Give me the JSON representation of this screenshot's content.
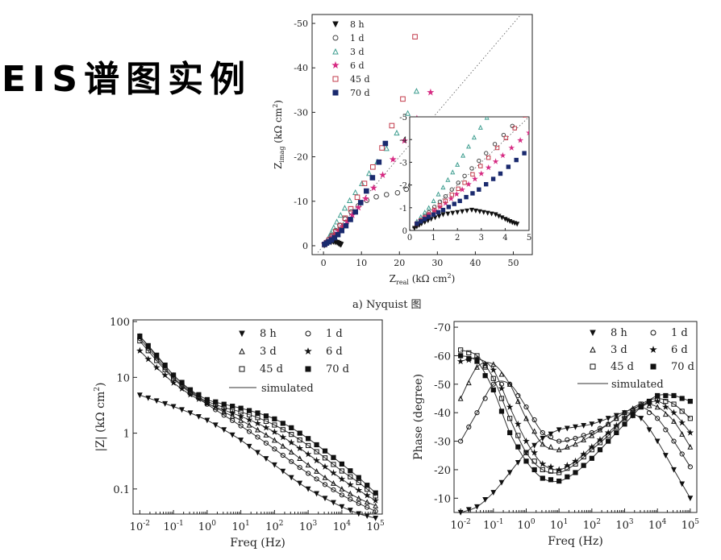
{
  "title": "EIS谱图实例",
  "caption": "a) Nyquist 图",
  "chart_data": [
    {
      "type": "scatter",
      "name": "nyquist",
      "xlabel_main": "Z",
      "xlabel_sub": "real",
      "xlabel_unit": "(kΩ cm",
      "ylabel_main": "Z",
      "ylabel_sub": "imag",
      "ylabel_unit": "(kΩ cm",
      "unit_sup": "2",
      "unit_close": ")",
      "xlim": [
        -3,
        55
      ],
      "ylim": [
        2,
        -52
      ],
      "xticks": [
        "0",
        "10",
        "20",
        "30",
        "40",
        "50"
      ],
      "yticks": [
        "0",
        "-10",
        "-20",
        "-30",
        "-40",
        "-50"
      ],
      "grid": false,
      "legend": "top-left",
      "series": [
        {
          "name": "8 h",
          "marker": "triangle-down-filled",
          "color": "#111111",
          "x": [
            0.2,
            0.5,
            0.9,
            1.4,
            2.0,
            2.6,
            3.1,
            3.6,
            4.0,
            4.3,
            4.6
          ],
          "y": [
            -0.1,
            -0.3,
            -0.5,
            -0.7,
            -0.8,
            -0.9,
            -0.8,
            -0.7,
            -0.5,
            -0.35,
            -0.25
          ]
        },
        {
          "name": "1 d",
          "marker": "circle-open",
          "color": "#444444",
          "x": [
            0.3,
            0.8,
            1.5,
            2.3,
            3.2,
            4.3,
            5.7,
            7.3,
            9.2,
            11.4,
            13.9,
            16.6,
            19.5,
            21.8,
            23.0
          ],
          "y": [
            -0.3,
            -0.8,
            -1.5,
            -2.4,
            -3.4,
            -4.6,
            -6.0,
            -7.6,
            -9.0,
            -10.2,
            -11.0,
            -11.5,
            -11.9,
            -12.7,
            -13.6
          ]
        },
        {
          "name": "3 d",
          "marker": "triangle-open",
          "color": "#3f9e90",
          "x": [
            0.3,
            0.8,
            1.4,
            2.0,
            2.7,
            3.5,
            4.5,
            5.6,
            6.9,
            8.4,
            10.1,
            12.0,
            14.2,
            16.6,
            19.3,
            22.2,
            24.5
          ],
          "y": [
            -0.4,
            -1.0,
            -1.9,
            -2.9,
            -4.1,
            -5.4,
            -6.9,
            -8.5,
            -10.2,
            -12.0,
            -14.0,
            -16.3,
            -18.9,
            -21.9,
            -25.4,
            -29.8,
            -34.8
          ]
        },
        {
          "name": "6 d",
          "marker": "star-filled",
          "color": "#d62a82",
          "x": [
            0.3,
            0.8,
            1.5,
            2.2,
            3.0,
            3.9,
            5.0,
            6.2,
            7.6,
            9.2,
            11.1,
            13.2,
            15.6,
            18.3,
            21.3,
            24.6,
            28.2
          ],
          "y": [
            -0.3,
            -0.7,
            -1.2,
            -1.8,
            -2.5,
            -3.3,
            -4.3,
            -5.5,
            -6.9,
            -8.6,
            -10.6,
            -13.0,
            -15.9,
            -19.4,
            -23.6,
            -28.6,
            -34.5
          ]
        },
        {
          "name": "45 d",
          "marker": "square-open",
          "color": "#c23a4a",
          "x": [
            0.3,
            0.8,
            1.5,
            2.3,
            3.3,
            4.4,
            5.7,
            7.2,
            8.9,
            10.8,
            13.0,
            15.4,
            18.0,
            20.9,
            24.1
          ],
          "y": [
            -0.3,
            -0.7,
            -1.3,
            -2.1,
            -3.2,
            -4.5,
            -6.2,
            -8.3,
            -10.9,
            -14.0,
            -17.7,
            -22.0,
            -27.0,
            -33.0,
            -47.0
          ]
        },
        {
          "name": "70 d",
          "marker": "square-filled",
          "color": "#1a2a6e",
          "x": [
            0.3,
            0.8,
            1.4,
            2.1,
            2.9,
            3.8,
            4.8,
            5.9,
            7.1,
            8.4,
            9.8,
            11.3,
            12.9,
            14.6,
            16.3
          ],
          "y": [
            -0.3,
            -0.6,
            -0.9,
            -1.3,
            -1.8,
            -2.5,
            -3.4,
            -4.5,
            -5.9,
            -7.6,
            -9.7,
            -12.3,
            -15.3,
            -18.8,
            -23.0
          ]
        }
      ],
      "inset": {
        "xlim": [
          0,
          5
        ],
        "ylim": [
          0,
          -5
        ],
        "xticks": [
          "0",
          "1",
          "2",
          "3",
          "4",
          "5"
        ],
        "yticks": [
          "0",
          "-1",
          "-2",
          "-3",
          "-4",
          "-5"
        ]
      }
    },
    {
      "type": "line",
      "name": "bode-magnitude",
      "xlabel": "Freq (Hz)",
      "ylabel_main": "|Z| (kΩ cm",
      "ylabel_sup": "2",
      "ylabel_close": ")",
      "xscale": "log",
      "yscale": "log",
      "xticks": [
        "10",
        "10",
        "10",
        "10",
        "10",
        "10",
        "10",
        "10"
      ],
      "xtick_exps": [
        "-2",
        "-1",
        "0",
        "1",
        "2",
        "3",
        "4",
        "5"
      ],
      "yticks": [
        "100",
        "10",
        "1",
        "0.1"
      ],
      "grid": false,
      "legend": "top-right",
      "simulated_label": "simulated",
      "series": [
        {
          "name": "8 h",
          "marker": "triangle-down-filled",
          "x": [
            0.01,
            0.0316,
            0.1,
            0.316,
            1,
            3.16,
            10,
            31.6,
            100,
            316,
            1000,
            3162,
            10000,
            31623,
            100000
          ],
          "y": [
            4.8,
            3.8,
            3.0,
            2.3,
            1.7,
            1.15,
            0.75,
            0.45,
            0.27,
            0.16,
            0.1,
            0.068,
            0.048,
            0.036,
            0.03
          ]
        },
        {
          "name": "1 d",
          "marker": "circle-open",
          "x": [
            0.01,
            0.0316,
            0.1,
            0.316,
            1,
            3.16,
            10,
            31.6,
            100,
            316,
            1000,
            3162,
            10000,
            31623,
            100000
          ],
          "y": [
            50,
            22,
            10,
            5.5,
            3.3,
            2.1,
            1.35,
            0.85,
            0.52,
            0.31,
            0.19,
            0.12,
            0.078,
            0.055,
            0.04
          ]
        },
        {
          "name": "3 d",
          "marker": "triangle-open",
          "x": [
            0.01,
            0.0316,
            0.1,
            0.316,
            1,
            3.16,
            10,
            31.6,
            100,
            316,
            1000,
            3162,
            10000,
            31623,
            100000
          ],
          "y": [
            55,
            24,
            11,
            5.8,
            3.5,
            2.4,
            1.7,
            1.15,
            0.75,
            0.46,
            0.27,
            0.16,
            0.1,
            0.068,
            0.05
          ]
        },
        {
          "name": "6 d",
          "marker": "star-filled",
          "x": [
            0.01,
            0.0316,
            0.1,
            0.316,
            1,
            3.16,
            10,
            31.6,
            100,
            316,
            1000,
            3162,
            10000,
            31623,
            100000
          ],
          "y": [
            30,
            15,
            8.0,
            4.9,
            3.4,
            2.6,
            2.0,
            1.5,
            1.05,
            0.68,
            0.42,
            0.25,
            0.15,
            0.095,
            0.062
          ]
        },
        {
          "name": "45 d",
          "marker": "square-open",
          "x": [
            0.01,
            0.0316,
            0.1,
            0.316,
            1,
            3.16,
            10,
            31.6,
            100,
            316,
            1000,
            3162,
            10000,
            31623,
            100000
          ],
          "y": [
            45,
            20,
            9.5,
            5.3,
            3.7,
            2.9,
            2.4,
            1.9,
            1.4,
            0.95,
            0.6,
            0.36,
            0.21,
            0.13,
            0.075
          ]
        },
        {
          "name": "70 d",
          "marker": "square-filled",
          "x": [
            0.01,
            0.0316,
            0.1,
            0.316,
            1,
            3.16,
            10,
            31.6,
            100,
            316,
            1000,
            3162,
            10000,
            31623,
            100000
          ],
          "y": [
            55,
            25,
            11,
            6.0,
            4.0,
            3.3,
            2.8,
            2.3,
            1.8,
            1.25,
            0.8,
            0.48,
            0.28,
            0.16,
            0.085
          ]
        }
      ]
    },
    {
      "type": "line",
      "name": "bode-phase",
      "xlabel": "Freq (Hz)",
      "ylabel": "Phase (degree)",
      "xscale": "log",
      "xticks": [
        "10",
        "10",
        "10",
        "10",
        "10",
        "10",
        "10",
        "10"
      ],
      "xtick_exps": [
        "-2",
        "-1",
        "0",
        "1",
        "2",
        "3",
        "4",
        "5"
      ],
      "yticks": [
        "-10",
        "-20",
        "-30",
        "-40",
        "-50",
        "-60",
        "-70"
      ],
      "ylim": [
        -5,
        -72
      ],
      "grid": false,
      "legend": "top-right",
      "simulated_label": "simulated",
      "series": [
        {
          "name": "8 h",
          "marker": "triangle-down-filled",
          "x": [
            0.01,
            0.0316,
            0.1,
            0.316,
            1,
            3.16,
            10,
            31.6,
            100,
            316,
            1000,
            3162,
            10000,
            31623,
            100000
          ],
          "y": [
            -5,
            -7,
            -12,
            -19,
            -26,
            -31,
            -34,
            -35,
            -36,
            -38,
            -40,
            -38,
            -30,
            -20,
            -10
          ]
        },
        {
          "name": "1 d",
          "marker": "circle-open",
          "x": [
            0.01,
            0.0316,
            0.1,
            0.316,
            1,
            3.16,
            10,
            31.6,
            100,
            316,
            1000,
            3162,
            10000,
            31623,
            100000
          ],
          "y": [
            -30,
            -40,
            -50,
            -50,
            -42,
            -33,
            -30,
            -31,
            -33,
            -36,
            -40,
            -42,
            -38,
            -30,
            -21
          ]
        },
        {
          "name": "3 d",
          "marker": "triangle-open",
          "x": [
            0.01,
            0.0316,
            0.1,
            0.316,
            1,
            3.16,
            10,
            31.6,
            100,
            316,
            1000,
            3162,
            10000,
            31623,
            100000
          ],
          "y": [
            -45,
            -56,
            -57,
            -50,
            -38,
            -29,
            -27,
            -29,
            -32,
            -36,
            -40,
            -43,
            -42,
            -37,
            -28
          ]
        },
        {
          "name": "6 d",
          "marker": "star-filled",
          "x": [
            0.01,
            0.0316,
            0.1,
            0.316,
            1,
            3.16,
            10,
            31.6,
            100,
            316,
            1000,
            3162,
            10000,
            31623,
            100000
          ],
          "y": [
            -58,
            -59,
            -55,
            -42,
            -30,
            -22,
            -20,
            -23,
            -28,
            -33,
            -38,
            -42,
            -44,
            -40,
            -33
          ]
        },
        {
          "name": "45 d",
          "marker": "square-open",
          "x": [
            0.01,
            0.0316,
            0.1,
            0.316,
            1,
            3.16,
            10,
            31.6,
            100,
            316,
            1000,
            3162,
            10000,
            31623,
            100000
          ],
          "y": [
            -62,
            -60,
            -52,
            -38,
            -26,
            -20,
            -19,
            -22,
            -27,
            -32,
            -38,
            -43,
            -45,
            -43,
            -38
          ]
        },
        {
          "name": "70 d",
          "marker": "square-filled",
          "x": [
            0.01,
            0.0316,
            0.1,
            0.316,
            1,
            3.16,
            10,
            31.6,
            100,
            316,
            1000,
            3162,
            10000,
            31623,
            100000
          ],
          "y": [
            -60,
            -58,
            -48,
            -33,
            -23,
            -17,
            -16,
            -19,
            -24,
            -30,
            -36,
            -42,
            -46,
            -46,
            -44
          ]
        }
      ]
    }
  ]
}
